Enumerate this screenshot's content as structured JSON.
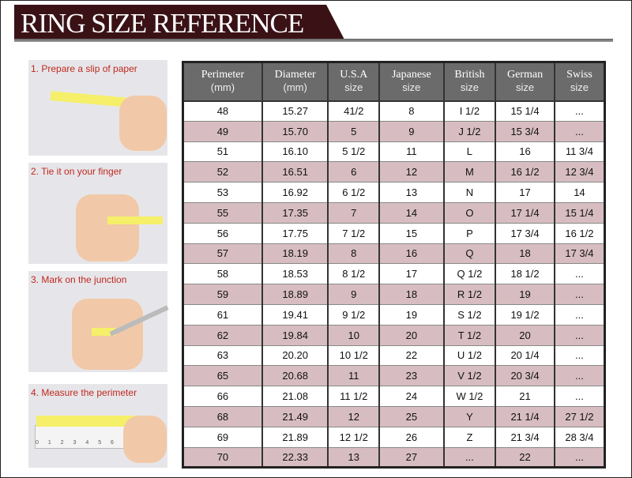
{
  "title": "RING SIZE REFERENCE",
  "steps": [
    "1. Prepare a slip of paper",
    "2. Tie it on your finger",
    "3. Mark on the junction",
    "4. Measure the perimeter"
  ],
  "ruler_ticks": "0 1 2 3 4 5 6 7 8 9",
  "headers": [
    [
      "Perimeter",
      "(mm)"
    ],
    [
      "Diameter",
      "(mm)"
    ],
    [
      "U.S.A",
      "size"
    ],
    [
      "Japanese",
      "size"
    ],
    [
      "British",
      "size"
    ],
    [
      "German",
      "size"
    ],
    [
      "Swiss",
      "size"
    ]
  ],
  "rows": [
    [
      "48",
      "15.27",
      "41/2",
      "8",
      "I 1/2",
      "15 1/4",
      "..."
    ],
    [
      "49",
      "15.70",
      "5",
      "9",
      "J 1/2",
      "15 3/4",
      "..."
    ],
    [
      "51",
      "16.10",
      "5 1/2",
      "11",
      "L",
      "16",
      "11 3/4"
    ],
    [
      "52",
      "16.51",
      "6",
      "12",
      "M",
      "16 1/2",
      "12 3/4"
    ],
    [
      "53",
      "16.92",
      "6 1/2",
      "13",
      "N",
      "17",
      "14"
    ],
    [
      "55",
      "17.35",
      "7",
      "14",
      "O",
      "17 1/4",
      "15 1/4"
    ],
    [
      "56",
      "17.75",
      "7 1/2",
      "15",
      "P",
      "17 3/4",
      "16 1/2"
    ],
    [
      "57",
      "18.19",
      "8",
      "16",
      "Q",
      "18",
      "17 3/4"
    ],
    [
      "58",
      "18.53",
      "8 1/2",
      "17",
      "Q  1/2",
      "18 1/2",
      "..."
    ],
    [
      "59",
      "18.89",
      "9",
      "18",
      "R 1/2",
      "19",
      "..."
    ],
    [
      "61",
      "19.41",
      "9 1/2",
      "19",
      "S 1/2",
      "19 1/2",
      "..."
    ],
    [
      "62",
      "19.84",
      "10",
      "20",
      "T 1/2",
      "20",
      "..."
    ],
    [
      "63",
      "20.20",
      "10 1/2",
      "22",
      "U 1/2",
      "20 1/4",
      "..."
    ],
    [
      "65",
      "20.68",
      "11",
      "23",
      "V 1/2",
      "20 3/4",
      "..."
    ],
    [
      "66",
      "21.08",
      "11 1/2",
      "24",
      "W 1/2",
      "21",
      "..."
    ],
    [
      "68",
      "21.49",
      "12",
      "25",
      "Y",
      "21 1/4",
      "27 1/2"
    ],
    [
      "69",
      "21.89",
      "12 1/2",
      "26",
      "Z",
      "21 3/4",
      "28 3/4"
    ],
    [
      "70",
      "22.33",
      "13",
      "27",
      "...",
      "22",
      "..."
    ]
  ],
  "colors": {
    "banner": "#3a1216",
    "header": "#6b6b6b",
    "alt_row": "#d7bdc1",
    "caption": "#c0281e"
  }
}
